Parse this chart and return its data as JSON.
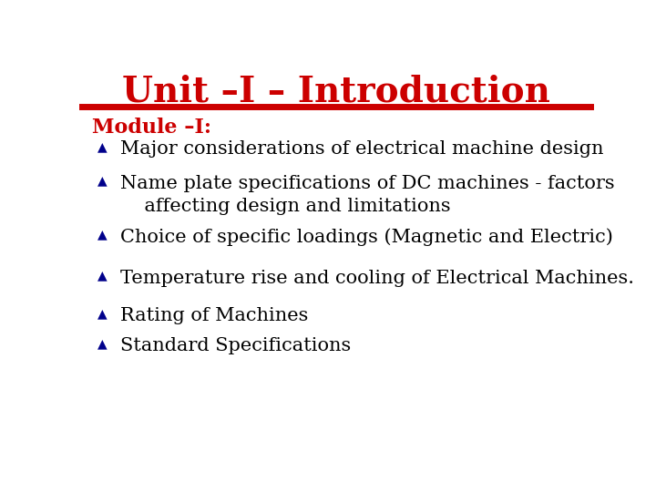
{
  "title": "Unit –I – Introduction",
  "title_color": "#CC0000",
  "title_fontsize": 28,
  "title_bold": true,
  "module_label": "Module –I:",
  "module_color": "#CC0000",
  "module_fontsize": 16,
  "module_bold": true,
  "bullet_color": "#00008B",
  "text_color": "#000000",
  "item_fontsize": 15,
  "background_color": "#FFFFFF",
  "line_color": "#CC0000",
  "items": [
    "Major considerations of electrical machine design",
    "Name plate specifications of DC machines - factors\n    affecting design and limitations",
    "Choice of specific loadings (Magnetic and Electric)",
    "Temperature rise and cooling of Electrical Machines.",
    "Rating of Machines",
    "Standard Specifications"
  ]
}
